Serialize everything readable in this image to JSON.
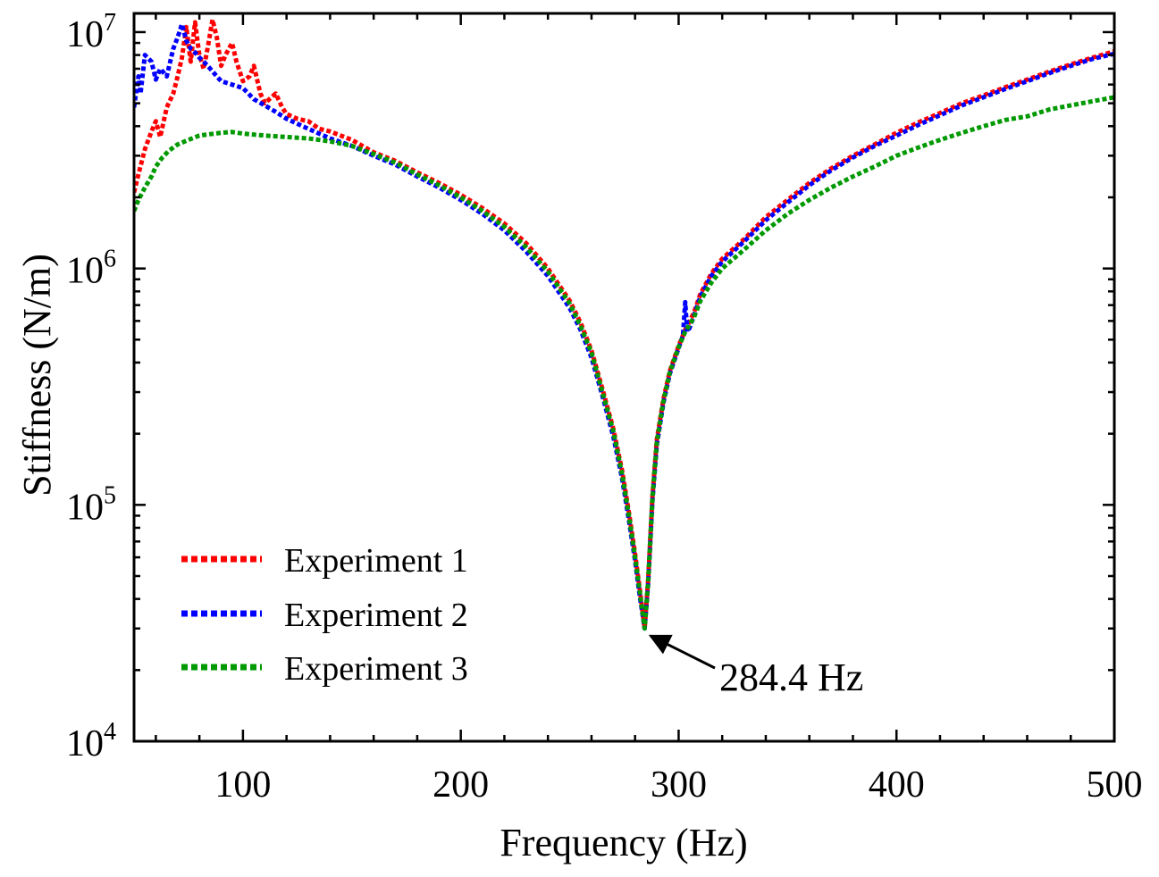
{
  "chart_data": {
    "type": "line",
    "title": "",
    "xlabel": "Frequency (Hz)",
    "ylabel": "Stiffness (N/m)",
    "xlim": [
      50,
      500
    ],
    "ylim": [
      10000,
      12000000
    ],
    "yscale": "log",
    "xticks": [
      100,
      200,
      300,
      400,
      500
    ],
    "xtick_labels": [
      "100",
      "200",
      "300",
      "400",
      "500"
    ],
    "yticks": [
      10000,
      100000,
      1000000,
      10000000
    ],
    "ytick_labels": [
      {
        "base": "10",
        "exp": "4"
      },
      {
        "base": "10",
        "exp": "5"
      },
      {
        "base": "10",
        "exp": "6"
      },
      {
        "base": "10",
        "exp": "7"
      }
    ],
    "legend_position": "bottom-left",
    "series": [
      {
        "name": "Experiment 1",
        "color": "#ff0000",
        "points": [
          [
            50,
            2100000
          ],
          [
            52,
            2500000
          ],
          [
            55,
            3200000
          ],
          [
            58,
            3800000
          ],
          [
            60,
            4200000
          ],
          [
            62,
            3600000
          ],
          [
            65,
            4800000
          ],
          [
            68,
            5500000
          ],
          [
            70,
            6500000
          ],
          [
            72,
            7800000
          ],
          [
            74,
            10500000
          ],
          [
            76,
            7500000
          ],
          [
            78,
            11000000
          ],
          [
            80,
            8000000
          ],
          [
            82,
            7000000
          ],
          [
            84,
            8800000
          ],
          [
            86,
            11300000
          ],
          [
            88,
            9500000
          ],
          [
            90,
            7200000
          ],
          [
            92,
            8000000
          ],
          [
            95,
            9000000
          ],
          [
            97,
            7500000
          ],
          [
            100,
            6200000
          ],
          [
            103,
            6500000
          ],
          [
            105,
            7200000
          ],
          [
            108,
            5500000
          ],
          [
            110,
            5000000
          ],
          [
            115,
            5500000
          ],
          [
            118,
            4800000
          ],
          [
            120,
            4500000
          ],
          [
            125,
            4300000
          ],
          [
            130,
            4200000
          ],
          [
            135,
            3900000
          ],
          [
            140,
            3800000
          ],
          [
            150,
            3500000
          ],
          [
            160,
            3100000
          ],
          [
            170,
            2850000
          ],
          [
            180,
            2550000
          ],
          [
            190,
            2300000
          ],
          [
            200,
            2050000
          ],
          [
            210,
            1800000
          ],
          [
            220,
            1550000
          ],
          [
            230,
            1280000
          ],
          [
            240,
            1000000
          ],
          [
            250,
            730000
          ],
          [
            255,
            590000
          ],
          [
            260,
            450000
          ],
          [
            265,
            310000
          ],
          [
            270,
            210000
          ],
          [
            274,
            140000
          ],
          [
            277,
            95000
          ],
          [
            280,
            62000
          ],
          [
            282,
            45000
          ],
          [
            284.4,
            30000
          ],
          [
            286,
            48000
          ],
          [
            288,
            110000
          ],
          [
            290,
            190000
          ],
          [
            293,
            280000
          ],
          [
            296,
            370000
          ],
          [
            300,
            470000
          ],
          [
            303,
            550000
          ],
          [
            307,
            650000
          ],
          [
            310,
            780000
          ],
          [
            315,
            950000
          ],
          [
            320,
            1100000
          ],
          [
            330,
            1330000
          ],
          [
            340,
            1650000
          ],
          [
            350,
            1950000
          ],
          [
            360,
            2300000
          ],
          [
            370,
            2650000
          ],
          [
            380,
            3000000
          ],
          [
            390,
            3350000
          ],
          [
            400,
            3750000
          ],
          [
            410,
            4150000
          ],
          [
            420,
            4550000
          ],
          [
            430,
            5000000
          ],
          [
            440,
            5400000
          ],
          [
            450,
            5850000
          ],
          [
            460,
            6300000
          ],
          [
            470,
            6800000
          ],
          [
            480,
            7300000
          ],
          [
            490,
            7800000
          ],
          [
            500,
            8300000
          ]
        ]
      },
      {
        "name": "Experiment 2",
        "color": "#0000ff",
        "points": [
          [
            50,
            4800000
          ],
          [
            52,
            6500000
          ],
          [
            53,
            5500000
          ],
          [
            55,
            8000000
          ],
          [
            58,
            7500000
          ],
          [
            60,
            6300000
          ],
          [
            62,
            7000000
          ],
          [
            65,
            6500000
          ],
          [
            68,
            8500000
          ],
          [
            70,
            9500000
          ],
          [
            72,
            10800000
          ],
          [
            74,
            9200000
          ],
          [
            76,
            8500000
          ],
          [
            78,
            8200000
          ],
          [
            80,
            7800000
          ],
          [
            82,
            7500000
          ],
          [
            85,
            7000000
          ],
          [
            88,
            6500000
          ],
          [
            90,
            6200000
          ],
          [
            95,
            6000000
          ],
          [
            100,
            5800000
          ],
          [
            105,
            5200000
          ],
          [
            110,
            4900000
          ],
          [
            115,
            4600000
          ],
          [
            120,
            4300000
          ],
          [
            130,
            3900000
          ],
          [
            140,
            3550000
          ],
          [
            150,
            3300000
          ],
          [
            160,
            3000000
          ],
          [
            170,
            2750000
          ],
          [
            180,
            2450000
          ],
          [
            190,
            2200000
          ],
          [
            200,
            1950000
          ],
          [
            210,
            1700000
          ],
          [
            220,
            1450000
          ],
          [
            230,
            1180000
          ],
          [
            240,
            930000
          ],
          [
            250,
            680000
          ],
          [
            255,
            550000
          ],
          [
            260,
            420000
          ],
          [
            265,
            290000
          ],
          [
            270,
            195000
          ],
          [
            274,
            130000
          ],
          [
            277,
            88000
          ],
          [
            280,
            58000
          ],
          [
            282,
            42000
          ],
          [
            284.4,
            30000
          ],
          [
            286,
            46000
          ],
          [
            288,
            105000
          ],
          [
            290,
            180000
          ],
          [
            293,
            270000
          ],
          [
            296,
            360000
          ],
          [
            300,
            460000
          ],
          [
            302,
            520000
          ],
          [
            303,
            720000
          ],
          [
            303.5,
            620000
          ],
          [
            304,
            540000
          ],
          [
            305,
            560000
          ],
          [
            307,
            630000
          ],
          [
            310,
            760000
          ],
          [
            315,
            930000
          ],
          [
            320,
            1070000
          ],
          [
            330,
            1300000
          ],
          [
            340,
            1600000
          ],
          [
            350,
            1900000
          ],
          [
            360,
            2250000
          ],
          [
            370,
            2600000
          ],
          [
            380,
            2950000
          ],
          [
            390,
            3300000
          ],
          [
            400,
            3650000
          ],
          [
            410,
            4050000
          ],
          [
            420,
            4450000
          ],
          [
            430,
            4900000
          ],
          [
            440,
            5300000
          ],
          [
            450,
            5750000
          ],
          [
            460,
            6200000
          ],
          [
            470,
            6700000
          ],
          [
            480,
            7200000
          ],
          [
            490,
            7700000
          ],
          [
            500,
            8100000
          ]
        ]
      },
      {
        "name": "Experiment 3",
        "color": "#009900",
        "points": [
          [
            50,
            1750000
          ],
          [
            52,
            1950000
          ],
          [
            55,
            2200000
          ],
          [
            58,
            2450000
          ],
          [
            60,
            2700000
          ],
          [
            63,
            2950000
          ],
          [
            66,
            3150000
          ],
          [
            70,
            3350000
          ],
          [
            75,
            3500000
          ],
          [
            80,
            3650000
          ],
          [
            85,
            3700000
          ],
          [
            90,
            3750000
          ],
          [
            95,
            3780000
          ],
          [
            100,
            3720000
          ],
          [
            110,
            3650000
          ],
          [
            120,
            3600000
          ],
          [
            130,
            3550000
          ],
          [
            140,
            3450000
          ],
          [
            150,
            3300000
          ],
          [
            160,
            3050000
          ],
          [
            170,
            2800000
          ],
          [
            180,
            2500000
          ],
          [
            190,
            2250000
          ],
          [
            200,
            2000000
          ],
          [
            210,
            1750000
          ],
          [
            220,
            1500000
          ],
          [
            230,
            1230000
          ],
          [
            240,
            970000
          ],
          [
            250,
            710000
          ],
          [
            255,
            570000
          ],
          [
            260,
            440000
          ],
          [
            265,
            300000
          ],
          [
            270,
            205000
          ],
          [
            274,
            135000
          ],
          [
            277,
            92000
          ],
          [
            280,
            60000
          ],
          [
            282,
            44000
          ],
          [
            284.4,
            30000
          ],
          [
            286,
            47000
          ],
          [
            288,
            108000
          ],
          [
            290,
            185000
          ],
          [
            293,
            275000
          ],
          [
            296,
            365000
          ],
          [
            300,
            465000
          ],
          [
            303,
            540000
          ],
          [
            307,
            620000
          ],
          [
            310,
            730000
          ],
          [
            315,
            870000
          ],
          [
            320,
            1000000
          ],
          [
            330,
            1200000
          ],
          [
            340,
            1450000
          ],
          [
            350,
            1700000
          ],
          [
            360,
            1950000
          ],
          [
            370,
            2200000
          ],
          [
            380,
            2450000
          ],
          [
            390,
            2700000
          ],
          [
            400,
            3000000
          ],
          [
            410,
            3250000
          ],
          [
            420,
            3500000
          ],
          [
            430,
            3750000
          ],
          [
            440,
            4000000
          ],
          [
            450,
            4250000
          ],
          [
            460,
            4400000
          ],
          [
            470,
            4700000
          ],
          [
            480,
            4900000
          ],
          [
            490,
            5100000
          ],
          [
            500,
            5300000
          ]
        ]
      }
    ],
    "annotation": {
      "text": "284.4 Hz",
      "x": 284.4,
      "y": 30000
    }
  }
}
